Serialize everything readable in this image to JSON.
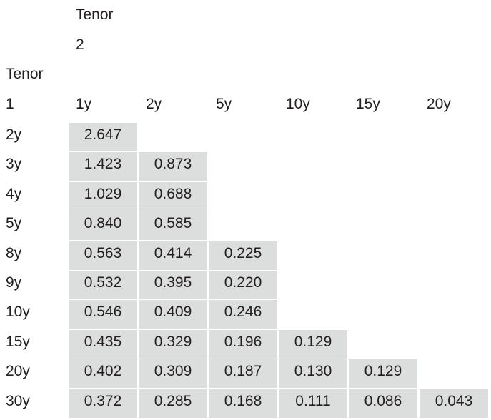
{
  "header": {
    "col_title": "Tenor",
    "col_number": "2",
    "row_title": "Tenor",
    "row_number": "1"
  },
  "columns": [
    "1y",
    "2y",
    "5y",
    "10y",
    "15y",
    "20y"
  ],
  "rows": [
    {
      "label": "2y",
      "values": [
        "2.647"
      ]
    },
    {
      "label": "3y",
      "values": [
        "1.423",
        "0.873"
      ]
    },
    {
      "label": "4y",
      "values": [
        "1.029",
        "0.688"
      ]
    },
    {
      "label": "5y",
      "values": [
        "0.840",
        "0.585"
      ]
    },
    {
      "label": "8y",
      "values": [
        "0.563",
        "0.414",
        "0.225"
      ]
    },
    {
      "label": "9y",
      "values": [
        "0.532",
        "0.395",
        "0.220"
      ]
    },
    {
      "label": "10y",
      "values": [
        "0.546",
        "0.409",
        "0.246"
      ]
    },
    {
      "label": "15y",
      "values": [
        "0.435",
        "0.329",
        "0.196",
        "0.129"
      ]
    },
    {
      "label": "20y",
      "values": [
        "0.402",
        "0.309",
        "0.187",
        "0.130",
        "0.129"
      ]
    },
    {
      "label": "30y",
      "values": [
        "0.372",
        "0.285",
        "0.168",
        "0.111",
        "0.086",
        "0.043"
      ]
    }
  ],
  "colors": {
    "cell_fill": "#dcdddd",
    "text": "#231f20"
  }
}
